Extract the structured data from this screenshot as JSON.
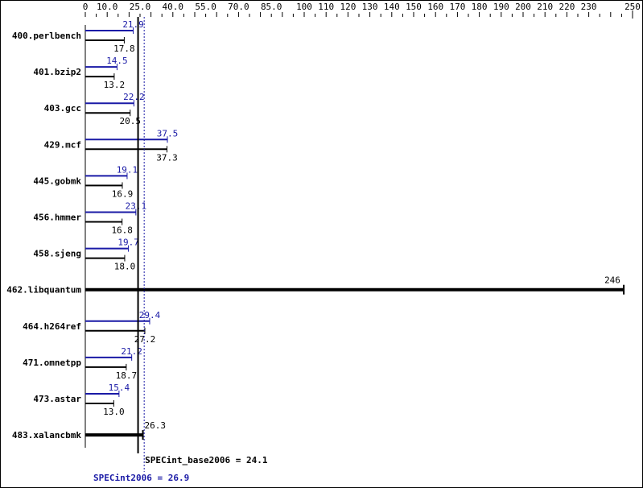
{
  "chart_data": {
    "type": "bar",
    "xlim": [
      0,
      250
    ],
    "tick_labels": [
      "0",
      "10.0",
      "25.0",
      "40.0",
      "55.0",
      "70.0",
      "85.0",
      "100",
      "110",
      "120",
      "130",
      "140",
      "150",
      "160",
      "170",
      "180",
      "190",
      "200",
      "210",
      "220",
      "230",
      "250"
    ],
    "tick_values": [
      0,
      10,
      25,
      40,
      55,
      70,
      85,
      100,
      110,
      120,
      130,
      140,
      150,
      160,
      170,
      180,
      190,
      200,
      210,
      220,
      230,
      250
    ],
    "categories": [
      "400.perlbench",
      "401.bzip2",
      "403.gcc",
      "429.mcf",
      "445.gobmk",
      "456.hmmer",
      "458.sjeng",
      "462.libquantum",
      "464.h264ref",
      "471.omnetpp",
      "473.astar",
      "483.xalancbmk"
    ],
    "series": [
      {
        "name": "SPECint2006",
        "color": "#1a1aa6",
        "values": [
          21.9,
          14.5,
          22.2,
          37.5,
          19.1,
          23.1,
          19.7,
          null,
          29.4,
          21.2,
          15.4,
          null
        ]
      },
      {
        "name": "SPECint_base2006",
        "color": "#000000",
        "values": [
          17.8,
          13.2,
          20.5,
          37.3,
          16.9,
          16.8,
          18.0,
          246,
          27.2,
          18.7,
          13.0,
          26.3
        ]
      }
    ],
    "single_labels": {
      "7": "246",
      "11": "26.3"
    },
    "base_summary": {
      "label": "SPECint_base2006 = 24.1",
      "value": 24.1
    },
    "peak_summary": {
      "label": "SPECint2006 = 26.9",
      "value": 26.9
    }
  }
}
